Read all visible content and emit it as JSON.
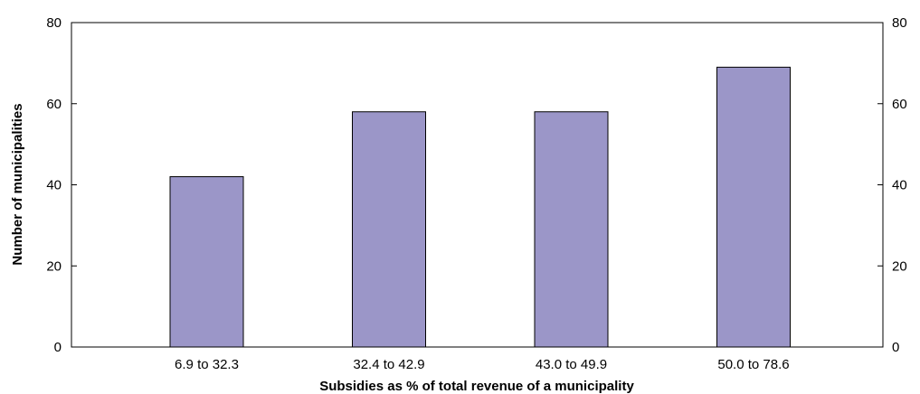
{
  "chart_data": {
    "type": "bar",
    "title": "",
    "xlabel": "Subsidies as % of total revenue of a municipality",
    "ylabel": "Number of municipalities",
    "categories": [
      "6.9 to 32.3",
      "32.4 to 42.9",
      "43.0 to 49.9",
      "50.0 to 78.6"
    ],
    "values": [
      42,
      58,
      58,
      69
    ],
    "ylim": [
      0,
      80
    ],
    "yticks": [
      "0",
      "20",
      "40",
      "60",
      "80"
    ],
    "right_axis": true,
    "grid": false,
    "legend": "none",
    "colors": {
      "bar_fill": "#9b96c8",
      "bar_stroke": "#000000"
    }
  }
}
